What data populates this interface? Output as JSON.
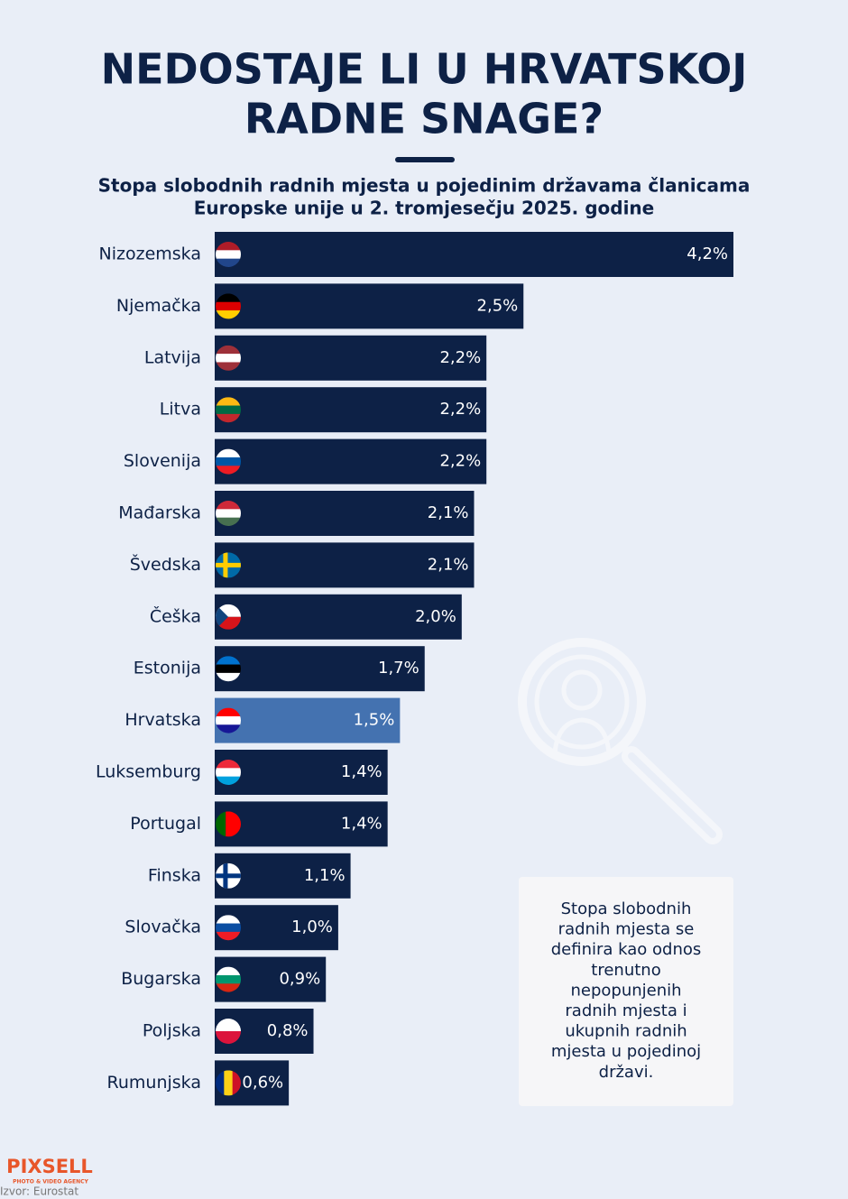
{
  "chart_data": {
    "type": "bar",
    "orientation": "horizontal",
    "title": [
      "NEDOSTAJE LI U HRVATSKOJ",
      "RADNE SNAGE?"
    ],
    "subtitle": [
      "Stopa slobodnih radnih mjesta u pojedinim državama članicama",
      "Europske unije u 2. tromjesečju 2025. godine"
    ],
    "categories": [
      "Nizozemska",
      "Njemačka",
      "Latvija",
      "Litva",
      "Slovenija",
      "Mađarska",
      "Švedska",
      "Češka",
      "Estonija",
      "Hrvatska",
      "Luksemburg",
      "Portugal",
      "Finska",
      "Slovačka",
      "Bugarska",
      "Poljska",
      "Rumunjska"
    ],
    "values": [
      4.2,
      2.5,
      2.2,
      2.2,
      2.2,
      2.1,
      2.1,
      2.0,
      1.7,
      1.5,
      1.4,
      1.4,
      1.1,
      1.0,
      0.9,
      0.8,
      0.6
    ],
    "value_labels": [
      "4,2%",
      "2,5%",
      "2,2%",
      "2,2%",
      "2,2%",
      "2,1%",
      "2,1%",
      "2,0%",
      "1,7%",
      "1,5%",
      "1,4%",
      "1,4%",
      "1,1%",
      "1,0%",
      "0,9%",
      "0,8%",
      "0,6%"
    ],
    "color": "#0d2146",
    "highlight_color": "#4472b0",
    "highlight": "Hrvatska",
    "note": [
      "Stopa slobodnih",
      "radnih mjesta se",
      "definira kao odnos",
      "trenutno",
      "nepopunjenih",
      "radnih mjesta i",
      "ukupnih radnih",
      "mjesta u pojedinoj",
      "državi."
    ],
    "logo": "PIXSELL",
    "logo_tagline": "PHOTO & VIDEO AGENCY",
    "source": "Izvor: Eurostat"
  }
}
